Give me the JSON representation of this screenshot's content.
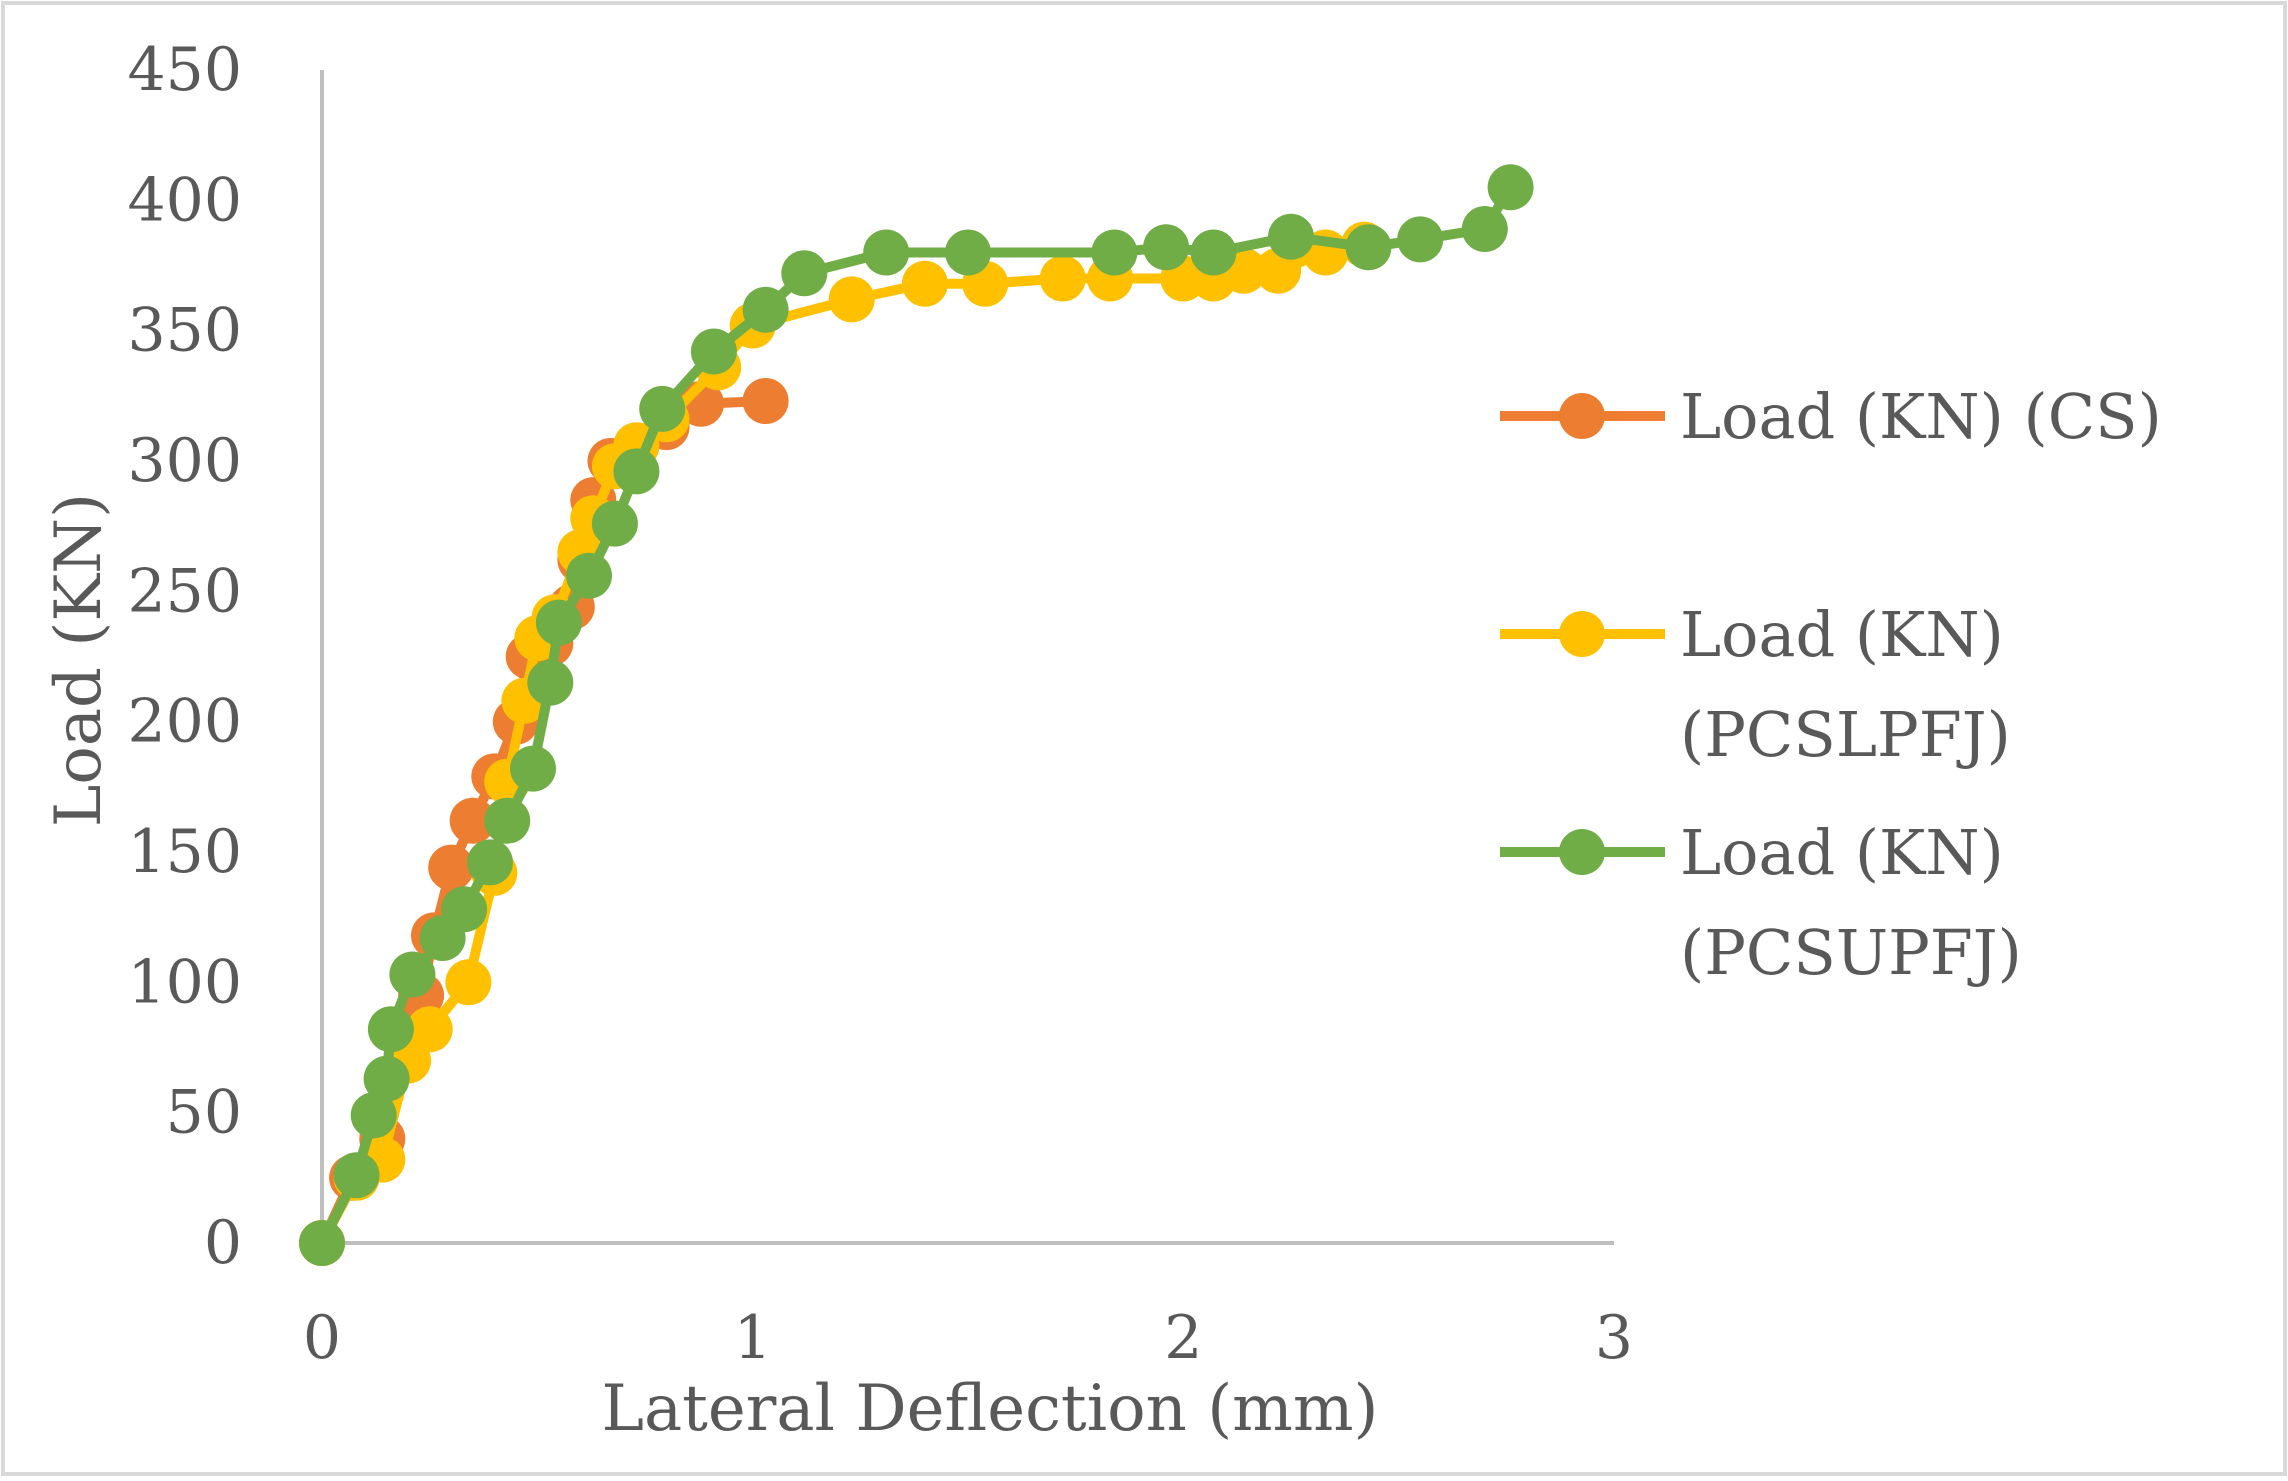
{
  "chart_data": {
    "type": "scatter",
    "title": "",
    "xlabel": "Lateral Deflection (mm)",
    "ylabel": "Load (KN)",
    "xlim": [
      0,
      3
    ],
    "ylim": [
      0,
      450
    ],
    "x_ticks": [
      0,
      1,
      2,
      3
    ],
    "y_ticks": [
      0,
      50,
      100,
      150,
      200,
      250,
      300,
      350,
      400,
      450
    ],
    "grid": false,
    "legend_position": "right",
    "series": [
      {
        "name": "Load (KN) (CS)",
        "legend_lines": [
          "Load (KN) (CS)"
        ],
        "color": "#ED7D31",
        "x": [
          0,
          0.07,
          0.14,
          0.2,
          0.23,
          0.26,
          0.3,
          0.35,
          0.4,
          0.45,
          0.48,
          0.53,
          0.58,
          0.6,
          0.63,
          0.67,
          0.73,
          0.8,
          0.88,
          1.03
        ],
        "y": [
          0,
          25,
          40,
          80,
          95,
          118,
          144,
          162,
          179,
          200,
          225,
          230,
          244,
          262,
          285,
          300,
          306,
          313,
          322,
          323
        ]
      },
      {
        "name": "Load (KN) (PCSLPFJ)",
        "legend_lines": [
          "Load (KN)",
          "(PCSLPFJ)"
        ],
        "color": "#FFC000",
        "x": [
          0,
          0.08,
          0.14,
          0.2,
          0.25,
          0.34,
          0.4,
          0.43,
          0.47,
          0.5,
          0.54,
          0.6,
          0.63,
          0.68,
          0.73,
          0.8,
          0.92,
          1.0,
          1.23,
          1.4,
          1.54,
          1.72,
          1.83,
          2.0,
          2.07,
          2.14,
          2.22,
          2.33,
          2.42
        ],
        "y": [
          0,
          25,
          32,
          70,
          82,
          100,
          142,
          177,
          208,
          232,
          240,
          265,
          278,
          298,
          306,
          316,
          336,
          352,
          362,
          368,
          368,
          370,
          370,
          370,
          370,
          373,
          373,
          380,
          383
        ]
      },
      {
        "name": "Load (KN) (PCSUPFJ)",
        "legend_lines": [
          "Load (KN)",
          "(PCSUPFJ)"
        ],
        "color": "#70AD47",
        "x": [
          0,
          0.08,
          0.12,
          0.15,
          0.16,
          0.21,
          0.28,
          0.33,
          0.39,
          0.43,
          0.49,
          0.53,
          0.55,
          0.62,
          0.68,
          0.73,
          0.79,
          0.91,
          1.03,
          1.12,
          1.31,
          1.5,
          1.84,
          1.96,
          2.07,
          2.25,
          2.43,
          2.55,
          2.7,
          2.76
        ],
        "y": [
          0,
          26,
          49,
          63,
          82,
          103,
          117,
          128,
          146,
          162,
          182,
          215,
          238,
          256,
          276,
          296,
          320,
          342,
          358,
          372,
          380,
          380,
          380,
          382,
          380,
          386,
          382,
          385,
          389,
          405
        ]
      }
    ]
  }
}
